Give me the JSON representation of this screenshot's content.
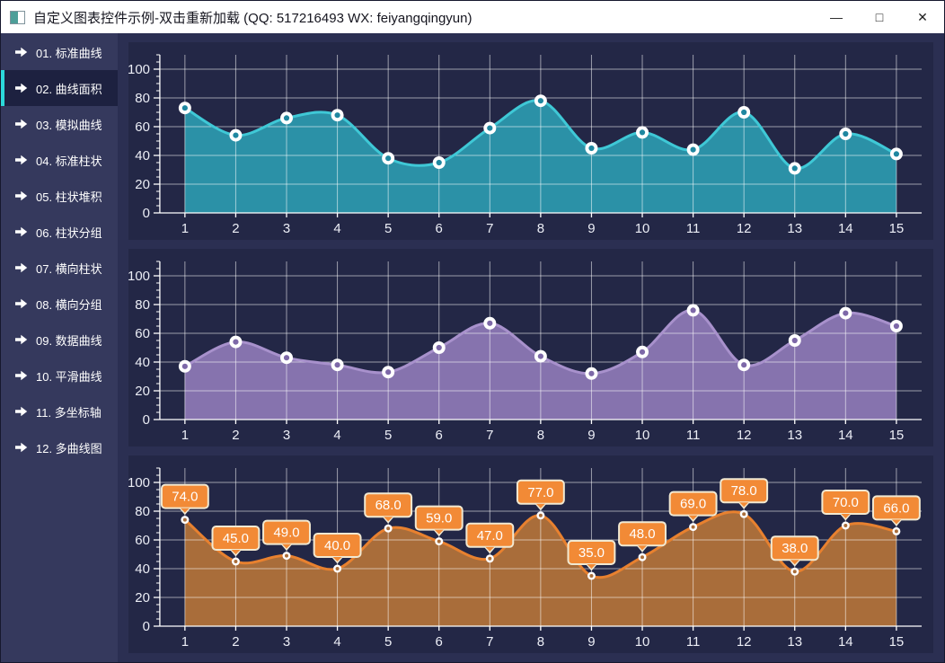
{
  "window": {
    "title": "自定义图表控件示例-双击重新加载 (QQ: 517216493 WX: feiyangqingyun)",
    "controls": {
      "minimize": "—",
      "maximize": "□",
      "close": "✕"
    }
  },
  "sidebar": {
    "items": [
      {
        "label": "01. 标准曲线",
        "active": false
      },
      {
        "label": "02. 曲线面积",
        "active": true
      },
      {
        "label": "03. 模拟曲线",
        "active": false
      },
      {
        "label": "04. 标准柱状",
        "active": false
      },
      {
        "label": "05. 柱状堆积",
        "active": false
      },
      {
        "label": "06. 柱状分组",
        "active": false
      },
      {
        "label": "07. 横向柱状",
        "active": false
      },
      {
        "label": "08. 横向分组",
        "active": false
      },
      {
        "label": "09. 数据曲线",
        "active": false
      },
      {
        "label": "10. 平滑曲线",
        "active": false
      },
      {
        "label": "11. 多坐标轴",
        "active": false
      },
      {
        "label": "12. 多曲线图",
        "active": false
      }
    ]
  },
  "theme": {
    "grid": "rgba(255,255,255,0.55)",
    "axis": "#ffffff",
    "tick_text": "#eceef6"
  },
  "chart_data": [
    {
      "type": "area",
      "name": "area-chart-teal",
      "x": [
        1,
        2,
        3,
        4,
        5,
        6,
        7,
        8,
        9,
        10,
        11,
        12,
        13,
        14,
        15
      ],
      "values": [
        73,
        54,
        66,
        68,
        38,
        35,
        59,
        78,
        45,
        56,
        44,
        70,
        31,
        55,
        41
      ],
      "ylim": [
        0,
        100
      ],
      "yticks": [
        0,
        20,
        40,
        60,
        80,
        100
      ],
      "smooth": true,
      "grid": true,
      "show_point_labels": false,
      "point_radius": 7,
      "colors": {
        "line": "#3fc8d6",
        "fill": "#2b91a7",
        "point_ring": "#ffffff",
        "point_center": "#1f87a0"
      }
    },
    {
      "type": "area",
      "name": "area-chart-purple",
      "x": [
        1,
        2,
        3,
        4,
        5,
        6,
        7,
        8,
        9,
        10,
        11,
        12,
        13,
        14,
        15
      ],
      "values": [
        37,
        54,
        43,
        38,
        33,
        50,
        67,
        44,
        32,
        47,
        76,
        38,
        55,
        74,
        65
      ],
      "ylim": [
        0,
        100
      ],
      "yticks": [
        0,
        20,
        40,
        60,
        80,
        100
      ],
      "smooth": true,
      "grid": true,
      "show_point_labels": false,
      "point_radius": 7,
      "colors": {
        "line": "#a891cc",
        "fill": "#8673ae",
        "point_ring": "#ffffff",
        "point_center": "#7d68a8"
      }
    },
    {
      "type": "area",
      "name": "area-chart-orange",
      "x": [
        1,
        2,
        3,
        4,
        5,
        6,
        7,
        8,
        9,
        10,
        11,
        12,
        13,
        14,
        15
      ],
      "values": [
        74,
        45,
        49,
        40,
        68,
        59,
        47,
        77,
        35,
        48,
        69,
        78,
        38,
        70,
        66
      ],
      "labels": [
        "74.0",
        "45.0",
        "49.0",
        "40.0",
        "68.0",
        "59.0",
        "47.0",
        "77.0",
        "35.0",
        "48.0",
        "69.0",
        "78.0",
        "38.0",
        "70.0",
        "66.0"
      ],
      "ylim": [
        0,
        100
      ],
      "yticks": [
        0,
        20,
        40,
        60,
        80,
        100
      ],
      "smooth": true,
      "grid": true,
      "show_point_labels": true,
      "point_radius": 4.5,
      "colors": {
        "line": "#e8812f",
        "fill": "#a96d3a",
        "point_ring": "#ffffff",
        "point_center": "#a96d3a",
        "label_bg": "#f28a36",
        "label_border": "#f1e9d2",
        "label_text": "#ffffff"
      }
    }
  ]
}
